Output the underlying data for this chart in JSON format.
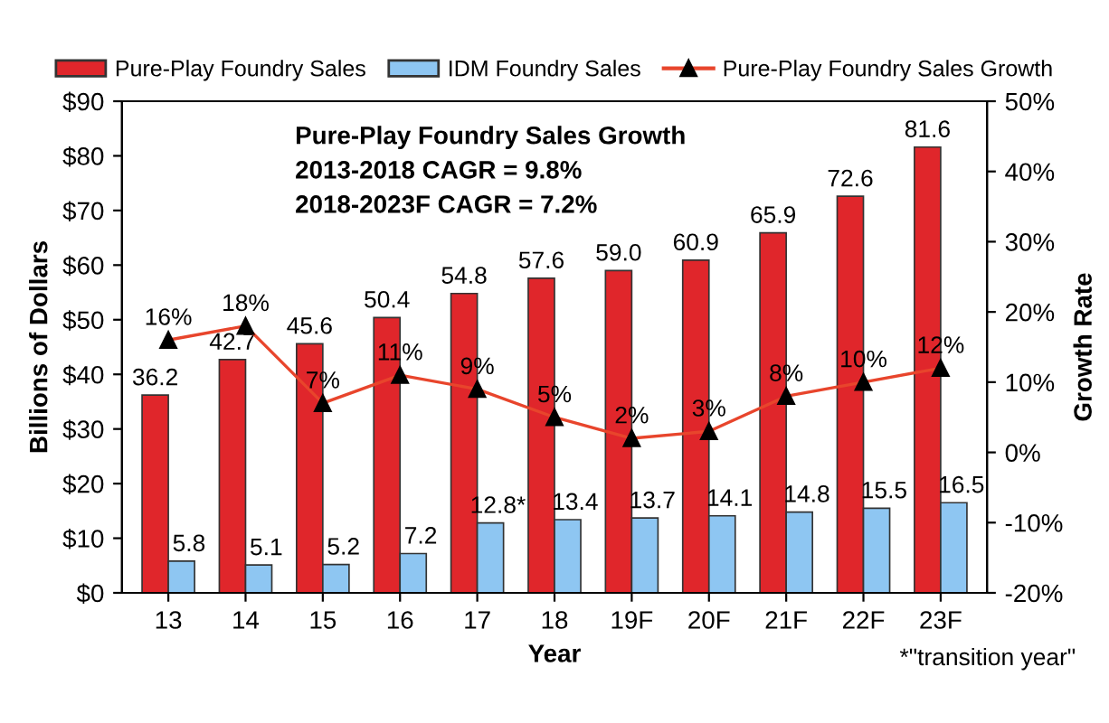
{
  "chart_data": {
    "type": "bar",
    "categories": [
      "13",
      "14",
      "15",
      "16",
      "17",
      "18",
      "19F",
      "20F",
      "21F",
      "22F",
      "23F"
    ],
    "series": [
      {
        "name": "Pure-Play Foundry Sales",
        "color": "#e0262b",
        "values": [
          36.2,
          42.7,
          45.6,
          50.4,
          54.8,
          57.6,
          59.0,
          60.9,
          65.9,
          72.6,
          81.6
        ],
        "value_labels": [
          "36.2",
          "42.7",
          "45.6",
          "50.4",
          "54.8",
          "57.6",
          "59.0",
          "60.9",
          "65.9",
          "72.6",
          "81.6"
        ]
      },
      {
        "name": "IDM Foundry Sales",
        "color": "#8ec6f2",
        "values": [
          5.8,
          5.1,
          5.2,
          7.2,
          12.8,
          13.4,
          13.7,
          14.1,
          14.8,
          15.5,
          16.5
        ],
        "value_labels": [
          "5.8",
          "5.1",
          "5.2",
          "7.2",
          "12.8*",
          "13.4",
          "13.7",
          "14.1",
          "14.8",
          "15.5",
          "16.5"
        ]
      },
      {
        "name": "Pure-Play Foundry Sales Growth",
        "type": "line",
        "axis": "y2",
        "color": "#e8452c",
        "marker": "triangle",
        "values": [
          16,
          18,
          7,
          11,
          9,
          5,
          2,
          3,
          8,
          10,
          12
        ],
        "value_labels": [
          "16%",
          "18%",
          "7%",
          "11%",
          "9%",
          "5%",
          "2%",
          "3%",
          "8%",
          "10%",
          "12%"
        ]
      }
    ],
    "xlabel": "Year",
    "ylabel": "Billions of Dollars",
    "y2label": "Growth Rate",
    "ylim": [
      0,
      90
    ],
    "yticks": [
      {
        "value": 0,
        "label": "$0"
      },
      {
        "value": 10,
        "label": "$10"
      },
      {
        "value": 20,
        "label": "$20"
      },
      {
        "value": 30,
        "label": "$30"
      },
      {
        "value": 40,
        "label": "$40"
      },
      {
        "value": 50,
        "label": "$50"
      },
      {
        "value": 60,
        "label": "$60"
      },
      {
        "value": 70,
        "label": "$70"
      },
      {
        "value": 80,
        "label": "$80"
      },
      {
        "value": 90,
        "label": "$90"
      }
    ],
    "y2lim": [
      -20,
      50
    ],
    "y2ticks": [
      {
        "value": -20,
        "label": "-20%"
      },
      {
        "value": -10,
        "label": "-10%"
      },
      {
        "value": 0,
        "label": "0%"
      },
      {
        "value": 10,
        "label": "10%"
      },
      {
        "value": 20,
        "label": "20%"
      },
      {
        "value": 30,
        "label": "30%"
      },
      {
        "value": 40,
        "label": "40%"
      },
      {
        "value": 50,
        "label": "50%"
      }
    ],
    "legend": "top",
    "grid": false,
    "annotations": [
      "Pure-Play Foundry Sales Growth",
      "2013-2018 CAGR = 9.8%",
      "2018-2023F CAGR = 7.2%",
      "*\"transition year\""
    ]
  }
}
